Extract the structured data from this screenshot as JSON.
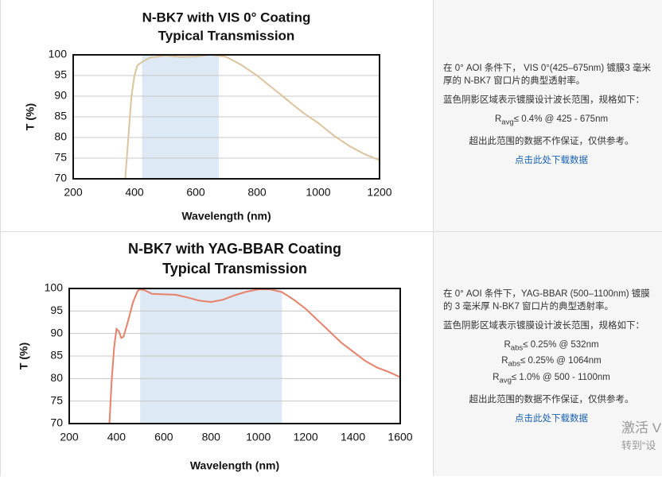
{
  "chart_data": [
    {
      "type": "line",
      "title": "N-BK7 with VIS 0° Coating",
      "subtitle": "Typical Transmission",
      "x_label": "Wavelength (nm)",
      "y_label": "T (%)",
      "xlim": [
        200,
        1200
      ],
      "ylim": [
        70,
        100
      ],
      "xticks": [
        200,
        400,
        600,
        800,
        1000,
        1200
      ],
      "yticks": [
        70,
        75,
        80,
        85,
        90,
        95,
        100
      ],
      "grid": true,
      "shaded_band": {
        "range": [
          425,
          675
        ],
        "color": "#dde9f5"
      },
      "x": [
        370,
        380,
        390,
        400,
        410,
        430,
        450,
        500,
        550,
        600,
        650,
        700,
        750,
        800,
        850,
        900,
        950,
        1000,
        1050,
        1100,
        1150,
        1200
      ],
      "series": [
        {
          "color": "#dcc49e",
          "values": [
            70,
            80,
            90,
            95,
            97.5,
            98.5,
            99.3,
            99.8,
            99.5,
            99.6,
            100,
            99.5,
            97.5,
            95,
            92,
            89,
            86,
            83.5,
            80.5,
            78,
            76,
            74.5
          ]
        }
      ]
    },
    {
      "type": "line",
      "title": "N-BK7 with YAG-BBAR Coating",
      "subtitle": "Typical Transmission",
      "x_label": "Wavelength (nm)",
      "y_label": "T (%)",
      "xlim": [
        200,
        1600
      ],
      "ylim": [
        70,
        100
      ],
      "xticks": [
        200,
        400,
        600,
        800,
        1000,
        1200,
        1400,
        1600
      ],
      "yticks": [
        70,
        75,
        80,
        85,
        90,
        95,
        100
      ],
      "grid": true,
      "shaded_band": {
        "range": [
          500,
          1100
        ],
        "color": "#dde9f5"
      },
      "x": [
        370,
        380,
        390,
        400,
        410,
        420,
        430,
        450,
        470,
        490,
        500,
        520,
        550,
        600,
        650,
        700,
        750,
        800,
        850,
        900,
        950,
        1000,
        1050,
        1100,
        1150,
        1200,
        1250,
        1300,
        1350,
        1400,
        1450,
        1500,
        1550,
        1600
      ],
      "series": [
        {
          "color": "#e8806a",
          "values": [
            70,
            80,
            87,
            91,
            90.5,
            89,
            89.3,
            93,
            97,
            99.5,
            99.8,
            99.6,
            98.8,
            98.7,
            98.6,
            98,
            97.3,
            97,
            97.5,
            98.5,
            99.3,
            99.8,
            99.8,
            99.2,
            97.5,
            95.5,
            93,
            90.5,
            88,
            86,
            84,
            82.5,
            81.5,
            80.3
          ]
        }
      ]
    }
  ],
  "panels": [
    {
      "intro": [
        "在 0° AOI 条件下， VIS 0°(425–675nm) 镀膜3 毫米",
        "厚的 N-BK7 窗口片的典型透射率。"
      ],
      "band_note": "蓝色阴影区域表示镀膜设计波长范围，规格如下：",
      "specs": [
        {
          "symbol": "R",
          "sub": "avg",
          "text": "≤ 0.4% @ 425 - 675nm"
        }
      ],
      "disclaimer": "超出此范围的数据不作保证，仅供参考。",
      "link": "点击此处下载数据"
    },
    {
      "intro": [
        "在 0° AOI 条件下，YAG-BBAR (500–1100nm) 镀膜",
        "的 3 毫米厚 N-BK7 窗口片的典型透射率。"
      ],
      "band_note": "蓝色阴影区域表示镀膜设计波长范围，规格如下：",
      "specs": [
        {
          "symbol": "R",
          "sub": "abs",
          "text": "≤ 0.25% @ 532nm"
        },
        {
          "symbol": "R",
          "sub": "abs",
          "text": "≤ 0.25% @ 1064nm"
        },
        {
          "symbol": "R",
          "sub": "avg",
          "text": "≤ 1.0% @ 500 - 1100nm"
        }
      ],
      "disclaimer": "超出此范围的数据不作保证，仅供参考。",
      "link": "点击此处下载数据"
    }
  ],
  "watermark": [
    "激活 V",
    "转到“设"
  ]
}
